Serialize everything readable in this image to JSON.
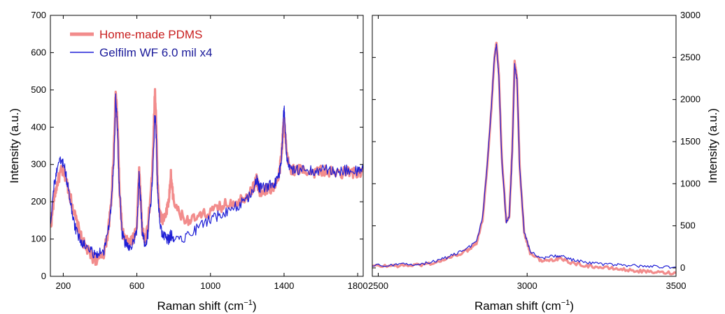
{
  "chart_data": [
    {
      "type": "line",
      "xlabel": "Raman shift (cm",
      "xlabel_sup": "−1",
      "xlabel_tail": ")",
      "ylabel": "Intensity (a.u.)",
      "xlim": [
        130,
        1830
      ],
      "ylim": [
        0,
        700
      ],
      "x_ticks": [
        200,
        600,
        1000,
        1400,
        1800
      ],
      "y_ticks": [
        0,
        100,
        200,
        300,
        400,
        500,
        600,
        700
      ],
      "y_axis_side": "left",
      "legend": {
        "position": "top-left"
      },
      "series": [
        {
          "name": "Home-made PDMS",
          "color": "#f28c8c",
          "x": [
            130,
            150,
            170,
            190,
            210,
            230,
            250,
            270,
            300,
            330,
            360,
            390,
            420,
            440,
            460,
            475,
            485,
            495,
            505,
            520,
            540,
            560,
            580,
            600,
            612,
            620,
            630,
            645,
            660,
            680,
            690,
            698,
            705,
            712,
            725,
            740,
            760,
            775,
            785,
            800,
            850,
            900,
            950,
            1000,
            1050,
            1100,
            1150,
            1200,
            1235,
            1250,
            1260,
            1270,
            1300,
            1340,
            1370,
            1385,
            1395,
            1400,
            1405,
            1415,
            1430,
            1460,
            1500,
            1550,
            1600,
            1650,
            1700,
            1750,
            1800,
            1830
          ],
          "y": [
            125,
            210,
            255,
            285,
            270,
            230,
            190,
            150,
            100,
            70,
            50,
            42,
            62,
            108,
            190,
            345,
            495,
            415,
            240,
            120,
            95,
            90,
            100,
            140,
            290,
            215,
            120,
            95,
            135,
            250,
            370,
            495,
            420,
            260,
            165,
            150,
            170,
            205,
            270,
            200,
            158,
            150,
            162,
            172,
            185,
            197,
            202,
            218,
            240,
            262,
            240,
            228,
            232,
            238,
            262,
            320,
            392,
            432,
            385,
            322,
            292,
            282,
            288,
            278,
            284,
            279,
            276,
            282,
            274,
            280
          ]
        },
        {
          "name": "Gelfilm WF 6.0 mil x4",
          "color": "#1f1fd6",
          "x": [
            130,
            150,
            170,
            190,
            210,
            230,
            250,
            270,
            300,
            330,
            360,
            390,
            420,
            440,
            460,
            475,
            485,
            495,
            505,
            520,
            540,
            560,
            580,
            600,
            612,
            620,
            630,
            645,
            660,
            680,
            690,
            698,
            705,
            712,
            725,
            740,
            760,
            775,
            785,
            800,
            850,
            900,
            950,
            1000,
            1050,
            1100,
            1150,
            1200,
            1235,
            1250,
            1260,
            1270,
            1300,
            1340,
            1370,
            1385,
            1395,
            1400,
            1405,
            1415,
            1430,
            1460,
            1500,
            1550,
            1600,
            1650,
            1700,
            1750,
            1800,
            1830
          ],
          "y": [
            145,
            245,
            290,
            315,
            285,
            225,
            165,
            120,
            90,
            75,
            65,
            58,
            70,
            112,
            178,
            310,
            478,
            398,
            230,
            115,
            85,
            80,
            90,
            118,
            272,
            208,
            112,
            85,
            115,
            218,
            330,
            440,
            380,
            240,
            138,
            110,
            102,
            100,
            112,
            105,
            103,
            118,
            138,
            152,
            165,
            178,
            190,
            210,
            235,
            262,
            242,
            235,
            240,
            245,
            262,
            312,
            412,
            456,
            402,
            315,
            286,
            282,
            292,
            282,
            288,
            282,
            278,
            286,
            280,
            286
          ]
        }
      ]
    },
    {
      "type": "line",
      "xlabel": "Raman shift (cm",
      "xlabel_sup": "−1",
      "xlabel_tail": ")",
      "ylabel": "Intensity (a.u.)",
      "xlim": [
        2480,
        3500
      ],
      "ylim": [
        -100,
        3000
      ],
      "x_ticks": [
        2500,
        3000,
        3500
      ],
      "y_ticks": [
        0,
        500,
        1000,
        1500,
        2000,
        2500,
        3000
      ],
      "y_axis_side": "right",
      "series": [
        {
          "name": "Home-made PDMS",
          "color": "#f28c8c",
          "x": [
            2480,
            2550,
            2600,
            2650,
            2700,
            2750,
            2800,
            2830,
            2850,
            2865,
            2880,
            2890,
            2897,
            2905,
            2915,
            2930,
            2940,
            2950,
            2958,
            2966,
            2975,
            2990,
            3010,
            3050,
            3090,
            3110,
            3150,
            3200,
            3250,
            3300,
            3350,
            3400,
            3450,
            3500
          ],
          "y": [
            20,
            25,
            30,
            38,
            70,
            135,
            210,
            300,
            560,
            1150,
            1900,
            2480,
            2680,
            2300,
            1300,
            560,
            610,
            1400,
            2450,
            2250,
            1200,
            420,
            180,
            80,
            100,
            110,
            60,
            25,
            5,
            -10,
            -30,
            -45,
            -55,
            -60
          ]
        },
        {
          "name": "Gelfilm WF 6.0 mil x4",
          "color": "#1f1fd6",
          "x": [
            2480,
            2550,
            2600,
            2650,
            2700,
            2750,
            2800,
            2830,
            2850,
            2865,
            2880,
            2890,
            2897,
            2905,
            2915,
            2930,
            2940,
            2950,
            2958,
            2966,
            2975,
            2990,
            3010,
            3050,
            3090,
            3110,
            3150,
            3200,
            3250,
            3300,
            3350,
            3400,
            3450,
            3500
          ],
          "y": [
            30,
            35,
            42,
            52,
            85,
            150,
            230,
            320,
            590,
            1180,
            1920,
            2500,
            2650,
            2280,
            1280,
            550,
            600,
            1380,
            2420,
            2230,
            1190,
            430,
            200,
            110,
            140,
            145,
            100,
            60,
            45,
            35,
            25,
            20,
            15,
            10
          ]
        }
      ]
    }
  ]
}
